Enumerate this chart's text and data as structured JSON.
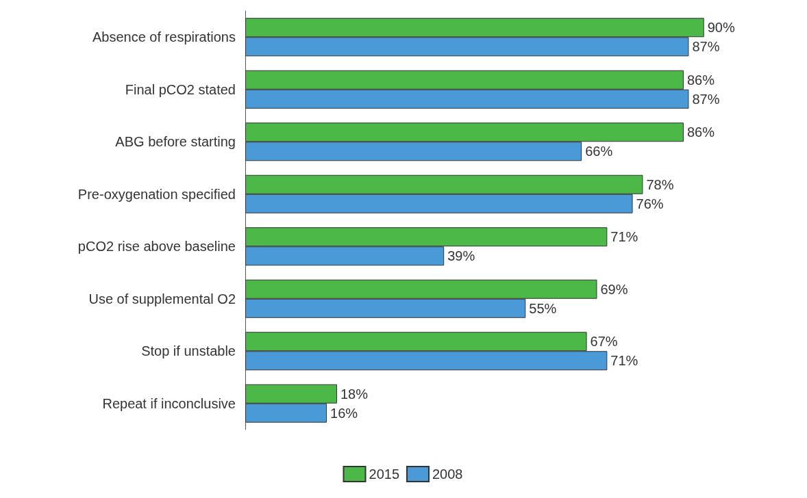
{
  "chart_data": {
    "type": "bar",
    "orientation": "horizontal",
    "categories": [
      "Absence of respirations",
      "Final pCO2 stated",
      "ABG before starting",
      "Pre-oxygenation specified",
      "pCO2 rise above baseline",
      "Use of supplemental O2",
      "Stop if unstable",
      "Repeat if inconclusive"
    ],
    "series": [
      {
        "name": "2015",
        "color": "#4cb848",
        "values": [
          90,
          86,
          86,
          78,
          71,
          69,
          67,
          18
        ],
        "value_labels": [
          "90%",
          "86%",
          "86%",
          "78%",
          "71%",
          "69%",
          "67%",
          "18%"
        ]
      },
      {
        "name": "2008",
        "color": "#4a9ad8",
        "values": [
          87,
          87,
          66,
          76,
          39,
          55,
          71,
          16
        ],
        "value_labels": [
          "87%",
          "87%",
          "66%",
          "76%",
          "39%",
          "55%",
          "71%",
          "16%"
        ]
      }
    ],
    "legend": "bottom"
  }
}
